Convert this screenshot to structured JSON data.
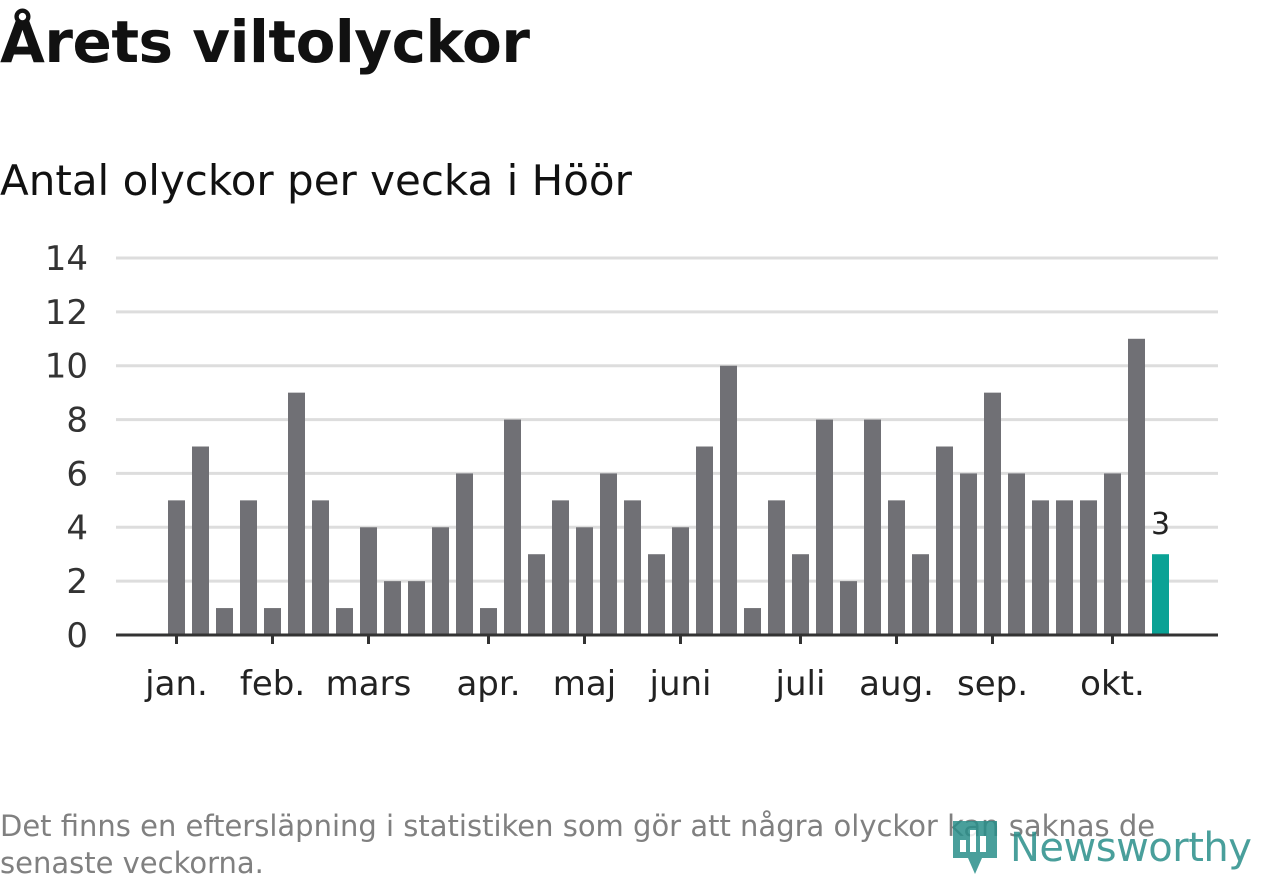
{
  "colors": {
    "bar": "#707075",
    "highlight": "#0aa295",
    "grid": "#dddddd",
    "axis": "#333333",
    "logo": "#2a8f8a"
  },
  "footnote": "Det finns en eftersläpning i statistiken som gör att några olyckor kan saknas de senaste veckorna.",
  "logo": {
    "text": "Newsworthy",
    "icon": "bar-chart-pin-icon"
  },
  "chart_data": {
    "type": "bar",
    "title": "Årets viltolyckor",
    "subtitle": "Antal olyckor per vecka i Höör",
    "xlabel": "",
    "ylabel": "",
    "ylim": [
      0,
      14
    ],
    "yticks": [
      0,
      2,
      4,
      6,
      8,
      10,
      12,
      14
    ],
    "grid": true,
    "legend": "none",
    "values": [
      5,
      7,
      1,
      5,
      1,
      9,
      5,
      1,
      4,
      2,
      2,
      4,
      6,
      1,
      8,
      3,
      5,
      4,
      6,
      5,
      3,
      4,
      7,
      10,
      1,
      5,
      3,
      8,
      2,
      8,
      5,
      3,
      7,
      6,
      9,
      6,
      5,
      5,
      5,
      6,
      11,
      3
    ],
    "highlight_index": 41,
    "highlight_label": "3",
    "month_labels": [
      {
        "label": "jan.",
        "bar_index": 0
      },
      {
        "label": "feb.",
        "bar_index": 4
      },
      {
        "label": "mars",
        "bar_index": 8
      },
      {
        "label": "apr.",
        "bar_index": 13
      },
      {
        "label": "maj",
        "bar_index": 17
      },
      {
        "label": "juni",
        "bar_index": 21
      },
      {
        "label": "juli",
        "bar_index": 26
      },
      {
        "label": "aug.",
        "bar_index": 30
      },
      {
        "label": "sep.",
        "bar_index": 34
      },
      {
        "label": "okt.",
        "bar_index": 39
      }
    ]
  }
}
